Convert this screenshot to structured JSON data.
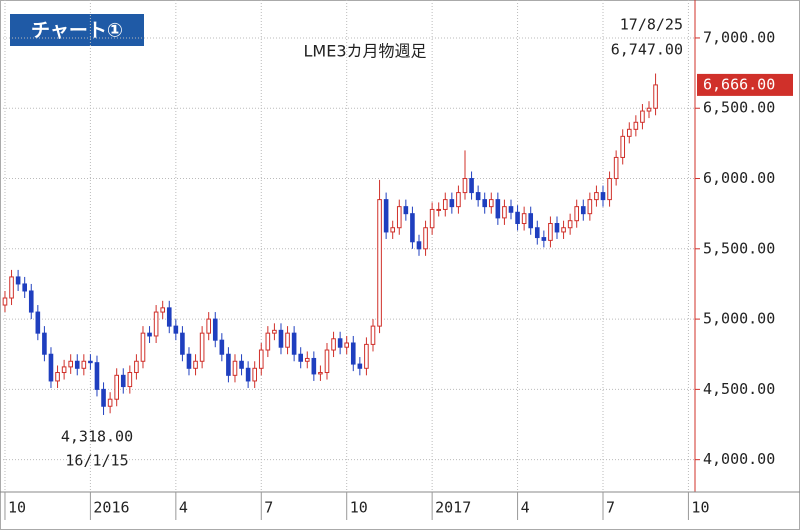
{
  "chart_data": {
    "type": "candlestick",
    "badge": "チャート①",
    "title": "LME3カ月物週足",
    "up_color": "#d0302a",
    "down_color": "#1f3fbf",
    "xlim": [
      -0.3,
      105
    ],
    "ylim": [
      3770,
      7270
    ],
    "xticks": [
      {
        "value": 0,
        "label": "10"
      },
      {
        "value": 13,
        "label": "2016"
      },
      {
        "value": 26,
        "label": "4"
      },
      {
        "value": 39,
        "label": "7"
      },
      {
        "value": 52,
        "label": "10"
      },
      {
        "value": 65,
        "label": "2017"
      },
      {
        "value": 78,
        "label": "4"
      },
      {
        "value": 91,
        "label": "7"
      },
      {
        "value": 104,
        "label": "10"
      }
    ],
    "yticks": [
      {
        "value": 4000,
        "label": "4,000.00"
      },
      {
        "value": 4500,
        "label": "4,500.00"
      },
      {
        "value": 5000,
        "label": "5,000.00"
      },
      {
        "value": 5500,
        "label": "5,500.00"
      },
      {
        "value": 6000,
        "label": "6,000.00"
      },
      {
        "value": 6500,
        "label": "6,500.00"
      },
      {
        "value": 7000,
        "label": "7,000.00"
      }
    ],
    "grid": true,
    "last_price_label": "6,666.00",
    "high_annotation": [
      "17/8/25",
      "6,747.00"
    ],
    "low_annotation": [
      "4,318.00",
      "16/1/15"
    ],
    "open": [
      5100,
      5150,
      5300,
      5250,
      5200,
      5050,
      4900,
      4750,
      4560,
      4620,
      4660,
      4700,
      4650,
      4700,
      4690,
      4500,
      4380,
      4430,
      4600,
      4520,
      4620,
      4700,
      4900,
      4880,
      5050,
      5080,
      4950,
      4900,
      4750,
      4650,
      4700,
      4900,
      5000,
      4850,
      4750,
      4600,
      4700,
      4650,
      4560,
      4650,
      4780,
      4900,
      4920,
      4800,
      4900,
      4750,
      4700,
      4720,
      4610,
      4620,
      4780,
      4860,
      4800,
      4830,
      4680,
      4650,
      4820,
      4950,
      5850,
      5620,
      5650,
      5800,
      5750,
      5550,
      5500,
      5650,
      5780,
      5780,
      5850,
      5800,
      5900,
      6000,
      5900,
      5850,
      5800,
      5850,
      5720,
      5800,
      5760,
      5680,
      5750,
      5650,
      5580,
      5560,
      5680,
      5620,
      5650,
      5700,
      5800,
      5750,
      5850,
      5900,
      5850,
      6000,
      6150,
      6300,
      6350,
      6400,
      6480,
      6500
    ],
    "high": [
      5200,
      5350,
      5350,
      5300,
      5250,
      5100,
      4950,
      4800,
      4670,
      4710,
      4750,
      4750,
      4750,
      4750,
      4740,
      4550,
      4480,
      4650,
      4650,
      4670,
      4750,
      4950,
      4950,
      5100,
      5130,
      5130,
      5000,
      4950,
      4800,
      4750,
      4950,
      5050,
      5050,
      4900,
      4800,
      4750,
      4750,
      4700,
      4700,
      4830,
      4950,
      4970,
      4970,
      4950,
      4950,
      4800,
      4770,
      4770,
      4670,
      4830,
      4910,
      4910,
      4880,
      4880,
      4730,
      4870,
      5000,
      5990,
      5900,
      5700,
      5850,
      5850,
      5800,
      5600,
      5700,
      5830,
      5830,
      5900,
      5900,
      5950,
      6200,
      6050,
      5950,
      5900,
      5900,
      5900,
      5850,
      5850,
      5810,
      5800,
      5800,
      5700,
      5630,
      5730,
      5730,
      5700,
      5750,
      5850,
      5850,
      5900,
      5950,
      5950,
      6050,
      6200,
      6350,
      6400,
      6450,
      6530,
      6550,
      6747
    ],
    "low": [
      5050,
      5100,
      5200,
      5150,
      5000,
      4850,
      4700,
      4510,
      4510,
      4570,
      4610,
      4600,
      4600,
      4640,
      4450,
      4318,
      4330,
      4380,
      4470,
      4470,
      4570,
      4650,
      4830,
      4830,
      5000,
      4900,
      4850,
      4700,
      4600,
      4600,
      4650,
      4850,
      4800,
      4700,
      4550,
      4550,
      4600,
      4510,
      4510,
      4600,
      4730,
      4850,
      4750,
      4750,
      4700,
      4650,
      4650,
      4560,
      4560,
      4570,
      4730,
      4750,
      4750,
      4630,
      4600,
      4600,
      4770,
      4900,
      5570,
      5570,
      5600,
      5700,
      5500,
      5450,
      5450,
      5600,
      5730,
      5730,
      5750,
      5750,
      5850,
      5850,
      5800,
      5750,
      5750,
      5670,
      5670,
      5710,
      5630,
      5630,
      5600,
      5530,
      5510,
      5510,
      5570,
      5570,
      5600,
      5650,
      5700,
      5700,
      5800,
      5800,
      5800,
      5950,
      6100,
      6250,
      6300,
      6350,
      6430,
      6450
    ],
    "close": [
      5150,
      5300,
      5250,
      5200,
      5050,
      4900,
      4750,
      4560,
      4620,
      4660,
      4700,
      4650,
      4700,
      4690,
      4500,
      4380,
      4430,
      4600,
      4520,
      4620,
      4700,
      4900,
      4880,
      5050,
      5080,
      4950,
      4900,
      4750,
      4650,
      4700,
      4900,
      5000,
      4850,
      4750,
      4600,
      4700,
      4650,
      4560,
      4650,
      4780,
      4900,
      4920,
      4800,
      4900,
      4750,
      4700,
      4720,
      4610,
      4620,
      4780,
      4860,
      4800,
      4830,
      4680,
      4650,
      4820,
      4950,
      5850,
      5620,
      5650,
      5800,
      5750,
      5550,
      5500,
      5650,
      5780,
      5780,
      5850,
      5800,
      5900,
      6000,
      5900,
      5850,
      5800,
      5850,
      5720,
      5800,
      5760,
      5680,
      5750,
      5650,
      5580,
      5560,
      5680,
      5620,
      5650,
      5700,
      5800,
      5750,
      5850,
      5900,
      5850,
      6000,
      6150,
      6300,
      6350,
      6400,
      6480,
      6500,
      6666
    ]
  }
}
